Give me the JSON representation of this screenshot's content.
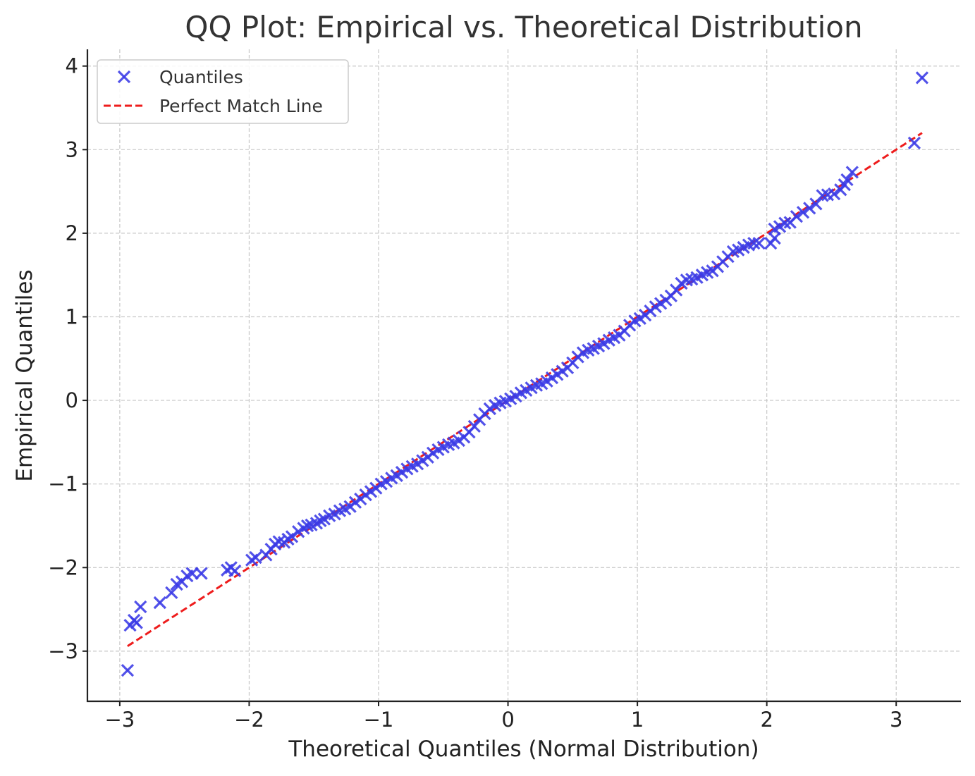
{
  "chart_data": {
    "type": "scatter",
    "title": "QQ Plot: Empirical vs. Theoretical Distribution",
    "xlabel": "Theoretical Quantiles (Normal Distribution)",
    "ylabel": "Empirical Quantiles",
    "xlim": [
      -3.25,
      3.5
    ],
    "ylim": [
      -3.6,
      4.2
    ],
    "x_ticks": [
      -3,
      -2,
      -1,
      0,
      1,
      2,
      3
    ],
    "x_tick_labels": [
      "−3",
      "−2",
      "−1",
      "0",
      "1",
      "2",
      "3"
    ],
    "y_ticks": [
      -3,
      -2,
      -1,
      0,
      1,
      2,
      3,
      4
    ],
    "y_tick_labels": [
      "−3",
      "−2",
      "−1",
      "0",
      "1",
      "2",
      "3",
      "4"
    ],
    "grid": true,
    "legend_position": "top-left",
    "series": [
      {
        "name": "Quantiles",
        "kind": "scatter",
        "marker": "x",
        "color": "#3a3ae6",
        "points": [
          [
            -2.94,
            -3.23
          ],
          [
            -2.92,
            -2.69
          ],
          [
            -2.89,
            -2.63
          ],
          [
            -2.87,
            -2.66
          ],
          [
            -2.84,
            -2.47
          ],
          [
            -2.69,
            -2.42
          ],
          [
            -2.6,
            -2.3
          ],
          [
            -2.56,
            -2.2
          ],
          [
            -2.52,
            -2.17
          ],
          [
            -2.48,
            -2.1
          ],
          [
            -2.44,
            -2.07
          ],
          [
            -2.37,
            -2.07
          ],
          [
            -2.17,
            -2.03
          ],
          [
            -2.14,
            -2.0
          ],
          [
            -2.11,
            -2.04
          ],
          [
            -1.98,
            -1.91
          ],
          [
            -1.95,
            -1.88
          ],
          [
            -1.87,
            -1.85
          ],
          [
            -1.83,
            -1.78
          ],
          [
            -1.8,
            -1.72
          ],
          [
            -1.77,
            -1.69
          ],
          [
            -1.73,
            -1.7
          ],
          [
            -1.7,
            -1.66
          ],
          [
            -1.67,
            -1.63
          ],
          [
            -1.62,
            -1.57
          ],
          [
            -1.58,
            -1.53
          ],
          [
            -1.55,
            -1.5
          ],
          [
            -1.52,
            -1.49
          ],
          [
            -1.48,
            -1.47
          ],
          [
            -1.45,
            -1.44
          ],
          [
            -1.42,
            -1.42
          ],
          [
            -1.38,
            -1.38
          ],
          [
            -1.34,
            -1.36
          ],
          [
            -1.3,
            -1.32
          ],
          [
            -1.26,
            -1.3
          ],
          [
            -1.22,
            -1.27
          ],
          [
            -1.18,
            -1.22
          ],
          [
            -1.14,
            -1.18
          ],
          [
            -1.1,
            -1.13
          ],
          [
            -1.06,
            -1.09
          ],
          [
            -1.02,
            -1.05
          ],
          [
            -0.98,
            -1.0
          ],
          [
            -0.94,
            -0.97
          ],
          [
            -0.9,
            -0.93
          ],
          [
            -0.86,
            -0.9
          ],
          [
            -0.82,
            -0.86
          ],
          [
            -0.78,
            -0.82
          ],
          [
            -0.74,
            -0.79
          ],
          [
            -0.7,
            -0.76
          ],
          [
            -0.66,
            -0.72
          ],
          [
            -0.62,
            -0.68
          ],
          [
            -0.58,
            -0.63
          ],
          [
            -0.54,
            -0.59
          ],
          [
            -0.5,
            -0.56
          ],
          [
            -0.46,
            -0.53
          ],
          [
            -0.42,
            -0.51
          ],
          [
            -0.38,
            -0.48
          ],
          [
            -0.34,
            -0.44
          ],
          [
            -0.3,
            -0.38
          ],
          [
            -0.26,
            -0.31
          ],
          [
            -0.22,
            -0.23
          ],
          [
            -0.18,
            -0.16
          ],
          [
            -0.14,
            -0.1
          ],
          [
            -0.1,
            -0.06
          ],
          [
            -0.06,
            -0.03
          ],
          [
            -0.02,
            -0.01
          ],
          [
            0.02,
            0.02
          ],
          [
            0.06,
            0.05
          ],
          [
            0.1,
            0.09
          ],
          [
            0.14,
            0.12
          ],
          [
            0.18,
            0.15
          ],
          [
            0.22,
            0.18
          ],
          [
            0.26,
            0.2
          ],
          [
            0.3,
            0.23
          ],
          [
            0.34,
            0.27
          ],
          [
            0.38,
            0.31
          ],
          [
            0.42,
            0.35
          ],
          [
            0.46,
            0.39
          ],
          [
            0.5,
            0.45
          ],
          [
            0.54,
            0.52
          ],
          [
            0.58,
            0.57
          ],
          [
            0.62,
            0.6
          ],
          [
            0.66,
            0.62
          ],
          [
            0.7,
            0.65
          ],
          [
            0.74,
            0.68
          ],
          [
            0.78,
            0.72
          ],
          [
            0.82,
            0.75
          ],
          [
            0.86,
            0.78
          ],
          [
            0.9,
            0.83
          ],
          [
            0.94,
            0.9
          ],
          [
            0.98,
            0.95
          ],
          [
            1.02,
            0.98
          ],
          [
            1.06,
            1.02
          ],
          [
            1.1,
            1.07
          ],
          [
            1.14,
            1.12
          ],
          [
            1.18,
            1.16
          ],
          [
            1.22,
            1.2
          ],
          [
            1.26,
            1.25
          ],
          [
            1.3,
            1.32
          ],
          [
            1.34,
            1.4
          ],
          [
            1.38,
            1.44
          ],
          [
            1.42,
            1.45
          ],
          [
            1.46,
            1.47
          ],
          [
            1.5,
            1.5
          ],
          [
            1.54,
            1.53
          ],
          [
            1.58,
            1.55
          ],
          [
            1.62,
            1.6
          ],
          [
            1.66,
            1.66
          ],
          [
            1.7,
            1.72
          ],
          [
            1.74,
            1.78
          ],
          [
            1.78,
            1.8
          ],
          [
            1.82,
            1.83
          ],
          [
            1.86,
            1.86
          ],
          [
            1.9,
            1.88
          ],
          [
            1.94,
            1.88
          ],
          [
            2.03,
            1.88
          ],
          [
            2.06,
            1.94
          ],
          [
            2.06,
            2.05
          ],
          [
            2.1,
            2.08
          ],
          [
            2.14,
            2.12
          ],
          [
            2.18,
            2.13
          ],
          [
            2.23,
            2.2
          ],
          [
            2.28,
            2.25
          ],
          [
            2.33,
            2.3
          ],
          [
            2.38,
            2.35
          ],
          [
            2.43,
            2.45
          ],
          [
            2.47,
            2.46
          ],
          [
            2.52,
            2.47
          ],
          [
            2.57,
            2.52
          ],
          [
            2.6,
            2.58
          ],
          [
            2.62,
            2.64
          ],
          [
            2.66,
            2.73
          ],
          [
            3.14,
            3.08
          ],
          [
            3.2,
            3.86
          ]
        ]
      },
      {
        "name": "Perfect Match Line",
        "kind": "line",
        "style": "dashed",
        "color": "#ee1c1c",
        "x": [
          -2.94,
          3.2
        ],
        "y": [
          -2.94,
          3.2
        ]
      }
    ]
  }
}
